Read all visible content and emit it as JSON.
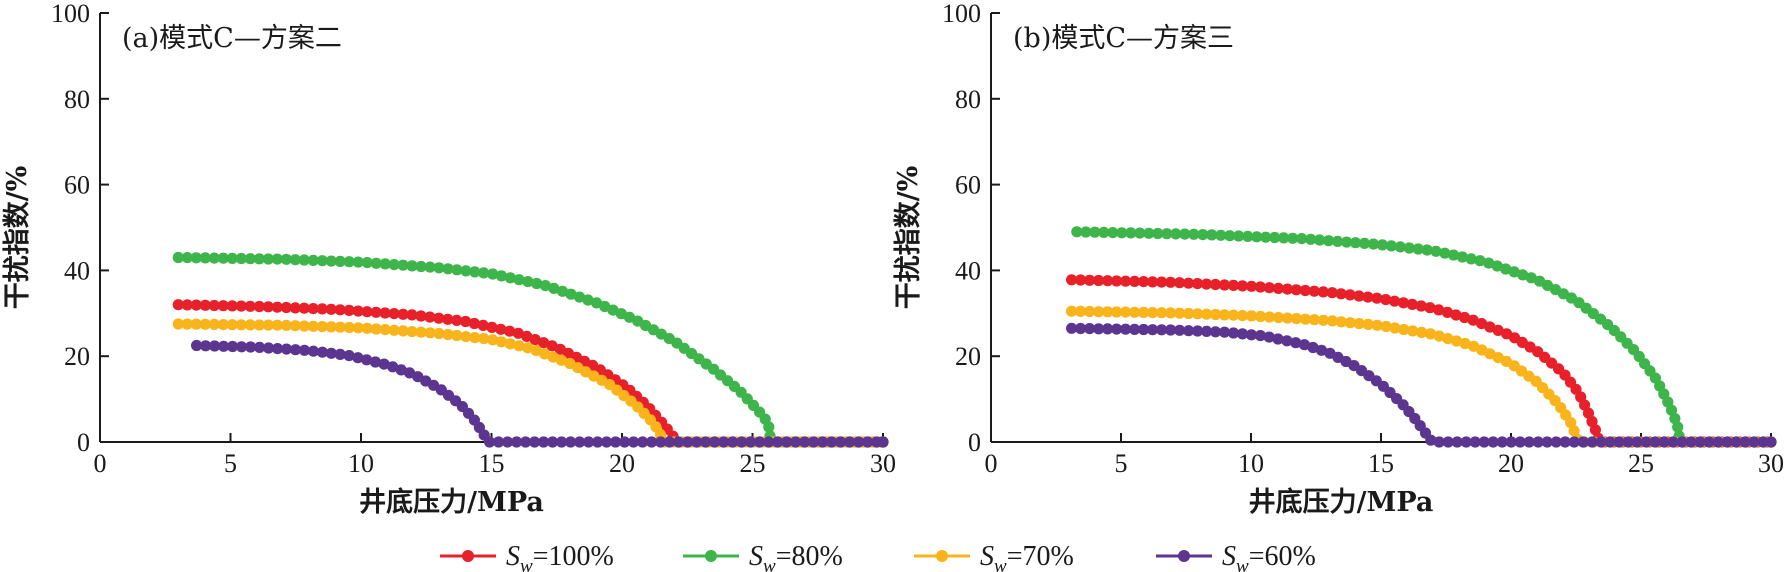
{
  "chart_data": [
    {
      "type": "line",
      "title": "(a)模式C—方案二",
      "xlabel": "井底压力/MPa",
      "ylabel": "干扰指数/%",
      "xlim": [
        0,
        30
      ],
      "ylim": [
        0,
        100
      ],
      "xticks": [
        0,
        5,
        10,
        15,
        20,
        25,
        30
      ],
      "yticks": [
        0,
        20,
        40,
        60,
        80,
        100
      ],
      "grid": false,
      "series": [
        {
          "name": "100%",
          "color": "#e8202a",
          "points": [
            [
              3.0,
              32.0
            ],
            [
              6,
              31.6
            ],
            [
              9,
              30.9
            ],
            [
              12,
              29.6
            ],
            [
              14,
              28.1
            ],
            [
              16,
              25.4
            ],
            [
              17.5,
              22.0
            ],
            [
              19,
              17.5
            ],
            [
              20.2,
              12.6
            ],
            [
              21,
              8.2
            ],
            [
              21.6,
              4.0
            ],
            [
              22.0,
              1.0
            ],
            [
              22.1,
              0
            ],
            [
              30,
              0
            ]
          ]
        },
        {
          "name": "80%",
          "color": "#3db54a",
          "points": [
            [
              3.0,
              43.0
            ],
            [
              7,
              42.6
            ],
            [
              10,
              41.9
            ],
            [
              13,
              40.6
            ],
            [
              15,
              39.2
            ],
            [
              17,
              36.6
            ],
            [
              19,
              32.5
            ],
            [
              20.5,
              28.5
            ],
            [
              22,
              23.5
            ],
            [
              23.5,
              17.0
            ],
            [
              24.5,
              12.0
            ],
            [
              25.2,
              7.5
            ],
            [
              25.6,
              4.5
            ],
            [
              25.7,
              0
            ],
            [
              30,
              0
            ]
          ]
        },
        {
          "name": "70%",
          "color": "#f9b41b",
          "points": [
            [
              3.0,
              27.5
            ],
            [
              7,
              27.2
            ],
            [
              10,
              26.6
            ],
            [
              13,
              25.3
            ],
            [
              15,
              23.9
            ],
            [
              16.5,
              21.8
            ],
            [
              18,
              18.3
            ],
            [
              19.5,
              13.5
            ],
            [
              20.5,
              8.8
            ],
            [
              21.2,
              4.5
            ],
            [
              21.5,
              1.5
            ],
            [
              21.6,
              0
            ],
            [
              30,
              0
            ]
          ]
        },
        {
          "name": "60%",
          "color": "#5b3590",
          "points": [
            [
              3.7,
              22.5
            ],
            [
              6,
              22.1
            ],
            [
              8,
              21.3
            ],
            [
              9.5,
              20.2
            ],
            [
              11,
              18.0
            ],
            [
              12,
              15.8
            ],
            [
              13,
              12.5
            ],
            [
              13.8,
              8.8
            ],
            [
              14.3,
              5.5
            ],
            [
              14.6,
              2.8
            ],
            [
              14.8,
              0.8
            ],
            [
              14.9,
              0
            ],
            [
              30,
              0
            ]
          ]
        }
      ]
    },
    {
      "type": "line",
      "title": "(b)模式C—方案三",
      "xlabel": "井底压力/MPa",
      "ylabel": "干扰指数/%",
      "xlim": [
        0,
        30
      ],
      "ylim": [
        0,
        100
      ],
      "xticks": [
        0,
        5,
        10,
        15,
        20,
        25,
        30
      ],
      "yticks": [
        0,
        20,
        40,
        60,
        80,
        100
      ],
      "grid": false,
      "series": [
        {
          "name": "100%",
          "color": "#e8202a",
          "points": [
            [
              3.1,
              37.8
            ],
            [
              7,
              37.2
            ],
            [
              10,
              36.3
            ],
            [
              13,
              34.9
            ],
            [
              15,
              33.4
            ],
            [
              17,
              31.2
            ],
            [
              18.5,
              28.5
            ],
            [
              20,
              24.8
            ],
            [
              21,
              21.2
            ],
            [
              22,
              16.2
            ],
            [
              22.6,
              11.5
            ],
            [
              23.0,
              6.5
            ],
            [
              23.3,
              2.0
            ],
            [
              23.4,
              0
            ],
            [
              30,
              0
            ]
          ]
        },
        {
          "name": "80%",
          "color": "#3db54a",
          "points": [
            [
              3.3,
              49.0
            ],
            [
              8,
              48.4
            ],
            [
              12,
              47.4
            ],
            [
              15,
              46.0
            ],
            [
              17,
              44.6
            ],
            [
              19,
              42.0
            ],
            [
              21,
              37.8
            ],
            [
              22.5,
              33.0
            ],
            [
              23.8,
              27.0
            ],
            [
              24.8,
              21.0
            ],
            [
              25.6,
              14.5
            ],
            [
              26.1,
              8.5
            ],
            [
              26.4,
              4.0
            ],
            [
              26.5,
              0
            ],
            [
              30,
              0
            ]
          ]
        },
        {
          "name": "70%",
          "color": "#f9b41b",
          "points": [
            [
              3.1,
              30.5
            ],
            [
              7,
              30.1
            ],
            [
              10,
              29.4
            ],
            [
              13,
              28.3
            ],
            [
              15,
              27.1
            ],
            [
              17,
              25.1
            ],
            [
              18.5,
              22.5
            ],
            [
              20,
              18.3
            ],
            [
              21,
              14.0
            ],
            [
              21.8,
              9.0
            ],
            [
              22.3,
              4.5
            ],
            [
              22.5,
              1.5
            ],
            [
              22.6,
              0
            ],
            [
              30,
              0
            ]
          ]
        },
        {
          "name": "60%",
          "color": "#5b3590",
          "points": [
            [
              3.1,
              26.5
            ],
            [
              7,
              26.1
            ],
            [
              9,
              25.6
            ],
            [
              10.5,
              24.7
            ],
            [
              12,
              22.8
            ],
            [
              13,
              20.8
            ],
            [
              14,
              17.7
            ],
            [
              15,
              13.5
            ],
            [
              15.8,
              9.0
            ],
            [
              16.3,
              5.5
            ],
            [
              16.7,
              2.2
            ],
            [
              16.9,
              0.5
            ],
            [
              17.0,
              0
            ],
            [
              30,
              0
            ]
          ]
        }
      ]
    }
  ],
  "legend": {
    "placement": "bottom",
    "var_main": "S",
    "var_sub": "w",
    "entries": [
      {
        "label": "=100%",
        "color": "#e8202a"
      },
      {
        "label": "=80%",
        "color": "#3db54a"
      },
      {
        "label": "=70%",
        "color": "#f9b41b"
      },
      {
        "label": "=60%",
        "color": "#5b3590"
      }
    ]
  }
}
